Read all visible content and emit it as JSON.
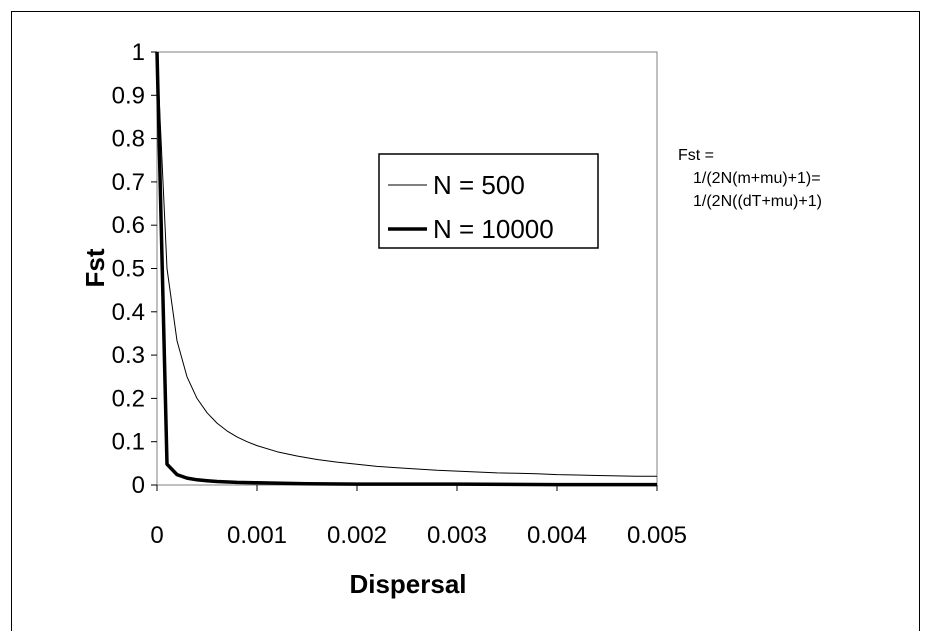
{
  "chart_data": {
    "type": "line",
    "title": "",
    "xlabel": "Dispersal",
    "ylabel": "Fst",
    "xlim": [
      0,
      0.005
    ],
    "ylim": [
      0,
      1
    ],
    "x_ticks": [
      "0",
      "0.001",
      "0.002",
      "0.003",
      "0.004",
      "0.005"
    ],
    "y_ticks": [
      "0",
      "0.1",
      "0.2",
      "0.3",
      "0.4",
      "0.5",
      "0.6",
      "0.7",
      "0.8",
      "0.9",
      "1"
    ],
    "grid": false,
    "legend_position": "upper-center",
    "series": [
      {
        "name": "N = 500",
        "x": [
          0,
          0.0001,
          0.0002,
          0.0003,
          0.0004,
          0.0005,
          0.0006,
          0.0007,
          0.0008,
          0.0009,
          0.001,
          0.0012,
          0.0014,
          0.0016,
          0.0018,
          0.002,
          0.0022,
          0.0024,
          0.0026,
          0.0028,
          0.003,
          0.0032,
          0.0034,
          0.0036,
          0.0038,
          0.004,
          0.0042,
          0.0044,
          0.0046,
          0.0048,
          0.005
        ],
        "y": [
          1,
          0.5,
          0.333,
          0.25,
          0.2,
          0.167,
          0.143,
          0.125,
          0.111,
          0.1,
          0.091,
          0.077,
          0.067,
          0.059,
          0.053,
          0.048,
          0.043,
          0.04,
          0.037,
          0.034,
          0.032,
          0.03,
          0.028,
          0.027,
          0.026,
          0.024,
          0.023,
          0.022,
          0.021,
          0.02,
          0.02
        ]
      },
      {
        "name": "N = 10000",
        "x": [
          0,
          0.0001,
          0.0002,
          0.0003,
          0.0004,
          0.0005,
          0.0006,
          0.0008,
          0.001,
          0.0015,
          0.002,
          0.003,
          0.004,
          0.005
        ],
        "y": [
          1,
          0.048,
          0.024,
          0.016,
          0.012,
          0.01,
          0.008,
          0.006,
          0.005,
          0.003,
          0.002,
          0.002,
          0.001,
          0.001
        ]
      }
    ],
    "annotation": {
      "line1": "Fst =",
      "line2": "1/(2N(m+mu)+1)=",
      "line3": "1/(2N((dT+mu)+1)"
    },
    "colors": {
      "N500": "#000000",
      "N10000": "#000000"
    }
  }
}
